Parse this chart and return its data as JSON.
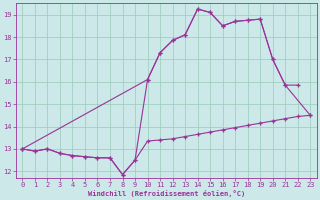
{
  "xlabel": "Windchill (Refroidissement éolien,°C)",
  "background_color": "#cce8e8",
  "grid_color": "#99ccbb",
  "line_color": "#993399",
  "xlim": [
    -0.5,
    23.5
  ],
  "ylim": [
    11.7,
    19.5
  ],
  "xticks": [
    0,
    1,
    2,
    3,
    4,
    5,
    6,
    7,
    8,
    9,
    10,
    11,
    12,
    13,
    14,
    15,
    16,
    17,
    18,
    19,
    20,
    21,
    22,
    23
  ],
  "yticks": [
    12,
    13,
    14,
    15,
    16,
    17,
    18,
    19
  ],
  "series1_x": [
    0,
    1,
    2,
    3,
    4,
    5,
    6,
    7,
    8,
    9,
    10,
    11,
    12,
    13,
    14,
    15,
    16,
    17,
    18,
    19,
    20,
    21,
    22,
    23
  ],
  "series1_y": [
    13.0,
    12.9,
    13.0,
    12.8,
    12.7,
    12.65,
    12.6,
    12.6,
    11.85,
    12.5,
    13.35,
    13.4,
    13.45,
    13.55,
    13.65,
    13.75,
    13.85,
    13.95,
    14.05,
    14.15,
    14.25,
    14.35,
    14.45,
    14.5
  ],
  "series2_x": [
    0,
    1,
    2,
    3,
    4,
    5,
    6,
    7,
    8,
    9,
    10,
    11,
    12,
    13,
    14,
    15,
    16,
    17,
    18,
    19,
    20,
    21,
    22
  ],
  "series2_y": [
    13.0,
    12.9,
    13.0,
    12.8,
    12.7,
    12.65,
    12.6,
    12.6,
    11.85,
    12.5,
    16.1,
    17.3,
    17.85,
    18.1,
    19.25,
    19.1,
    18.5,
    18.7,
    18.75,
    18.8,
    17.0,
    15.85,
    15.85
  ],
  "series3_x": [
    0,
    10,
    11,
    12,
    13,
    14,
    15,
    16,
    17,
    18,
    19,
    20,
    21,
    23
  ],
  "series3_y": [
    13.0,
    16.1,
    17.3,
    17.85,
    18.1,
    19.25,
    19.1,
    18.5,
    18.7,
    18.75,
    18.8,
    17.0,
    15.85,
    14.5
  ]
}
